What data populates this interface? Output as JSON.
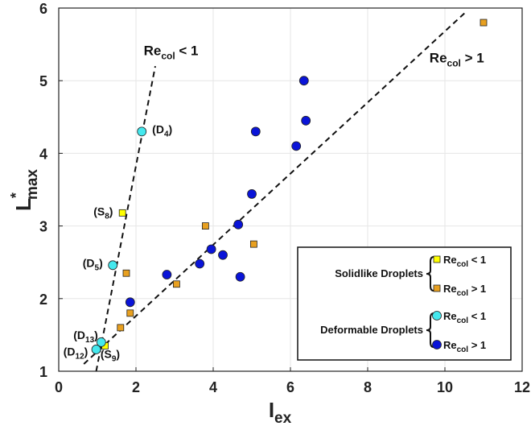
{
  "chart_data": {
    "type": "scatter",
    "title": "",
    "xlabel": {
      "main": "I",
      "sub": "ex"
    },
    "ylabel": {
      "main": "L",
      "sup": "*",
      "sub": "max"
    },
    "xlim": [
      0,
      12
    ],
    "ylim": [
      1,
      6
    ],
    "xticks": [
      "0",
      "2",
      "4",
      "6",
      "8",
      "10",
      "12"
    ],
    "yticks": [
      "1",
      "2",
      "3",
      "4",
      "5",
      "6"
    ],
    "grid": true,
    "colors": {
      "solid_low": "#ffff00",
      "solid_high": "#e8a020",
      "deform_low": "#44e8ee",
      "deform_high": "#0a14d8",
      "marker_edge": "#222222",
      "grid": "#e6e6e6"
    },
    "series": [
      {
        "key": "solid_low",
        "marker": "square",
        "points": [
          {
            "x": 1.65,
            "y": 3.18
          },
          {
            "x": 1.2,
            "y": 1.35
          }
        ]
      },
      {
        "key": "solid_high",
        "marker": "square",
        "points": [
          {
            "x": 1.6,
            "y": 1.6
          },
          {
            "x": 1.85,
            "y": 1.8
          },
          {
            "x": 1.75,
            "y": 2.35
          },
          {
            "x": 3.05,
            "y": 2.2
          },
          {
            "x": 3.8,
            "y": 3.0
          },
          {
            "x": 5.05,
            "y": 2.75
          },
          {
            "x": 11.0,
            "y": 5.8
          }
        ]
      },
      {
        "key": "deform_low",
        "marker": "circle",
        "points": [
          {
            "x": 2.15,
            "y": 4.3
          },
          {
            "x": 1.4,
            "y": 2.46
          },
          {
            "x": 1.1,
            "y": 1.4
          },
          {
            "x": 0.97,
            "y": 1.3
          }
        ]
      },
      {
        "key": "deform_high",
        "marker": "circle",
        "points": [
          {
            "x": 1.85,
            "y": 1.95
          },
          {
            "x": 2.8,
            "y": 2.33
          },
          {
            "x": 3.65,
            "y": 2.48
          },
          {
            "x": 3.95,
            "y": 2.68
          },
          {
            "x": 4.25,
            "y": 2.6
          },
          {
            "x": 4.7,
            "y": 2.3
          },
          {
            "x": 4.65,
            "y": 3.02
          },
          {
            "x": 5.0,
            "y": 3.44
          },
          {
            "x": 5.1,
            "y": 4.3
          },
          {
            "x": 6.15,
            "y": 4.1
          },
          {
            "x": 6.35,
            "y": 5.0
          },
          {
            "x": 6.4,
            "y": 4.45
          }
        ]
      }
    ],
    "fit_lines": [
      {
        "key": "recol_lt1",
        "x1": 0.97,
        "y1": 1.0,
        "x2": 2.5,
        "y2": 5.2
      },
      {
        "key": "recol_gt1",
        "x1": 0.65,
        "y1": 1.1,
        "x2": 10.55,
        "y2": 5.95
      }
    ],
    "line_labels": [
      {
        "key": "recol_lt1",
        "main": "Re",
        "sub": "col",
        "rest": " < 1",
        "x": 2.2,
        "y": 5.35
      },
      {
        "key": "recol_gt1",
        "main": "Re",
        "sub": "col",
        "rest": " > 1",
        "x": 9.6,
        "y": 5.25
      }
    ],
    "annotations": [
      {
        "text": "(D",
        "sub": "4",
        "close": ")",
        "x": 2.42,
        "y": 4.33
      },
      {
        "text": "(S",
        "sub": "8",
        "close": ")",
        "x": 0.9,
        "y": 3.2
      },
      {
        "text": "(D",
        "sub": "5",
        "close": ")",
        "x": 0.62,
        "y": 2.49
      },
      {
        "text": "(D",
        "sub": "13",
        "close": ")",
        "x": 0.38,
        "y": 1.5
      },
      {
        "text": "(D",
        "sub": "12",
        "close": ")",
        "x": 0.12,
        "y": 1.27
      },
      {
        "text": "(S",
        "sub": "9",
        "close": ")",
        "x": 1.08,
        "y": 1.24
      }
    ],
    "legend": {
      "position": "bottom-right",
      "groups": [
        {
          "label": "Solidlike Droplets",
          "items": [
            {
              "key": "solid_low",
              "marker": "square",
              "main": "Re",
              "sub": "col",
              "rest": " < 1"
            },
            {
              "key": "solid_high",
              "marker": "square",
              "main": "Re",
              "sub": "col",
              "rest": " > 1"
            }
          ]
        },
        {
          "label": "Deformable Droplets",
          "items": [
            {
              "key": "deform_low",
              "marker": "circle",
              "main": "Re",
              "sub": "col",
              "rest": " < 1"
            },
            {
              "key": "deform_high",
              "marker": "circle",
              "main": "Re",
              "sub": "col",
              "rest": " > 1"
            }
          ]
        }
      ]
    }
  }
}
